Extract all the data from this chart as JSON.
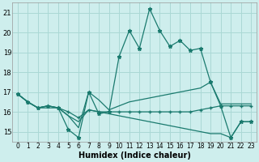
{
  "xlabel": "Humidex (Indice chaleur)",
  "background_color": "#ceeeed",
  "grid_color": "#aad8d5",
  "line_color": "#1a7a6e",
  "ylim": [
    14.5,
    21.5
  ],
  "yticks": [
    15,
    16,
    17,
    18,
    19,
    20,
    21
  ],
  "line1_x": [
    0,
    1,
    2,
    3,
    4,
    5,
    6,
    7,
    8,
    9,
    10,
    11,
    12,
    13,
    14,
    15,
    16,
    17,
    18,
    19,
    20,
    21,
    22,
    23
  ],
  "line1_y": [
    16.9,
    16.5,
    16.2,
    16.3,
    16.2,
    15.1,
    14.7,
    17.0,
    15.9,
    16.0,
    18.8,
    20.1,
    19.2,
    21.2,
    20.1,
    19.3,
    19.6,
    19.1,
    19.2,
    17.5,
    16.3,
    14.7,
    15.5,
    15.5
  ],
  "line1_marker": "*",
  "line2_x": [
    0,
    1,
    2,
    3,
    4,
    5,
    6,
    7,
    8,
    9,
    10,
    11,
    12,
    13,
    14,
    15,
    16,
    17,
    18,
    19,
    20,
    21,
    22,
    23
  ],
  "line2_y": [
    16.9,
    16.5,
    16.2,
    16.3,
    16.2,
    15.8,
    15.2,
    17.0,
    16.6,
    16.1,
    16.3,
    16.5,
    16.6,
    16.7,
    16.8,
    16.9,
    17.0,
    17.1,
    17.2,
    17.5,
    16.4,
    16.4,
    16.4,
    16.4
  ],
  "line2_marker": null,
  "line3_x": [
    0,
    1,
    2,
    3,
    4,
    5,
    6,
    7,
    8,
    9,
    10,
    11,
    12,
    13,
    14,
    15,
    16,
    17,
    18,
    19,
    20,
    21,
    22,
    23
  ],
  "line3_y": [
    16.9,
    16.5,
    16.2,
    16.3,
    16.2,
    16.0,
    15.7,
    16.1,
    16.0,
    16.0,
    16.0,
    16.0,
    16.0,
    16.0,
    16.0,
    16.0,
    16.0,
    16.0,
    16.1,
    16.2,
    16.3,
    16.3,
    16.3,
    16.3
  ],
  "line3_marker": "+",
  "line4_x": [
    0,
    1,
    2,
    3,
    4,
    5,
    6,
    7,
    8,
    9,
    10,
    11,
    12,
    13,
    14,
    15,
    16,
    17,
    18,
    19,
    20,
    21,
    22,
    23
  ],
  "line4_y": [
    16.9,
    16.5,
    16.2,
    16.2,
    16.2,
    15.8,
    15.5,
    16.1,
    16.0,
    15.9,
    15.8,
    15.7,
    15.6,
    15.5,
    15.4,
    15.3,
    15.2,
    15.1,
    15.0,
    14.9,
    14.9,
    14.7,
    15.5,
    15.5
  ],
  "line4_marker": null,
  "tick_fontsize": 6,
  "xlabel_fontsize": 7
}
